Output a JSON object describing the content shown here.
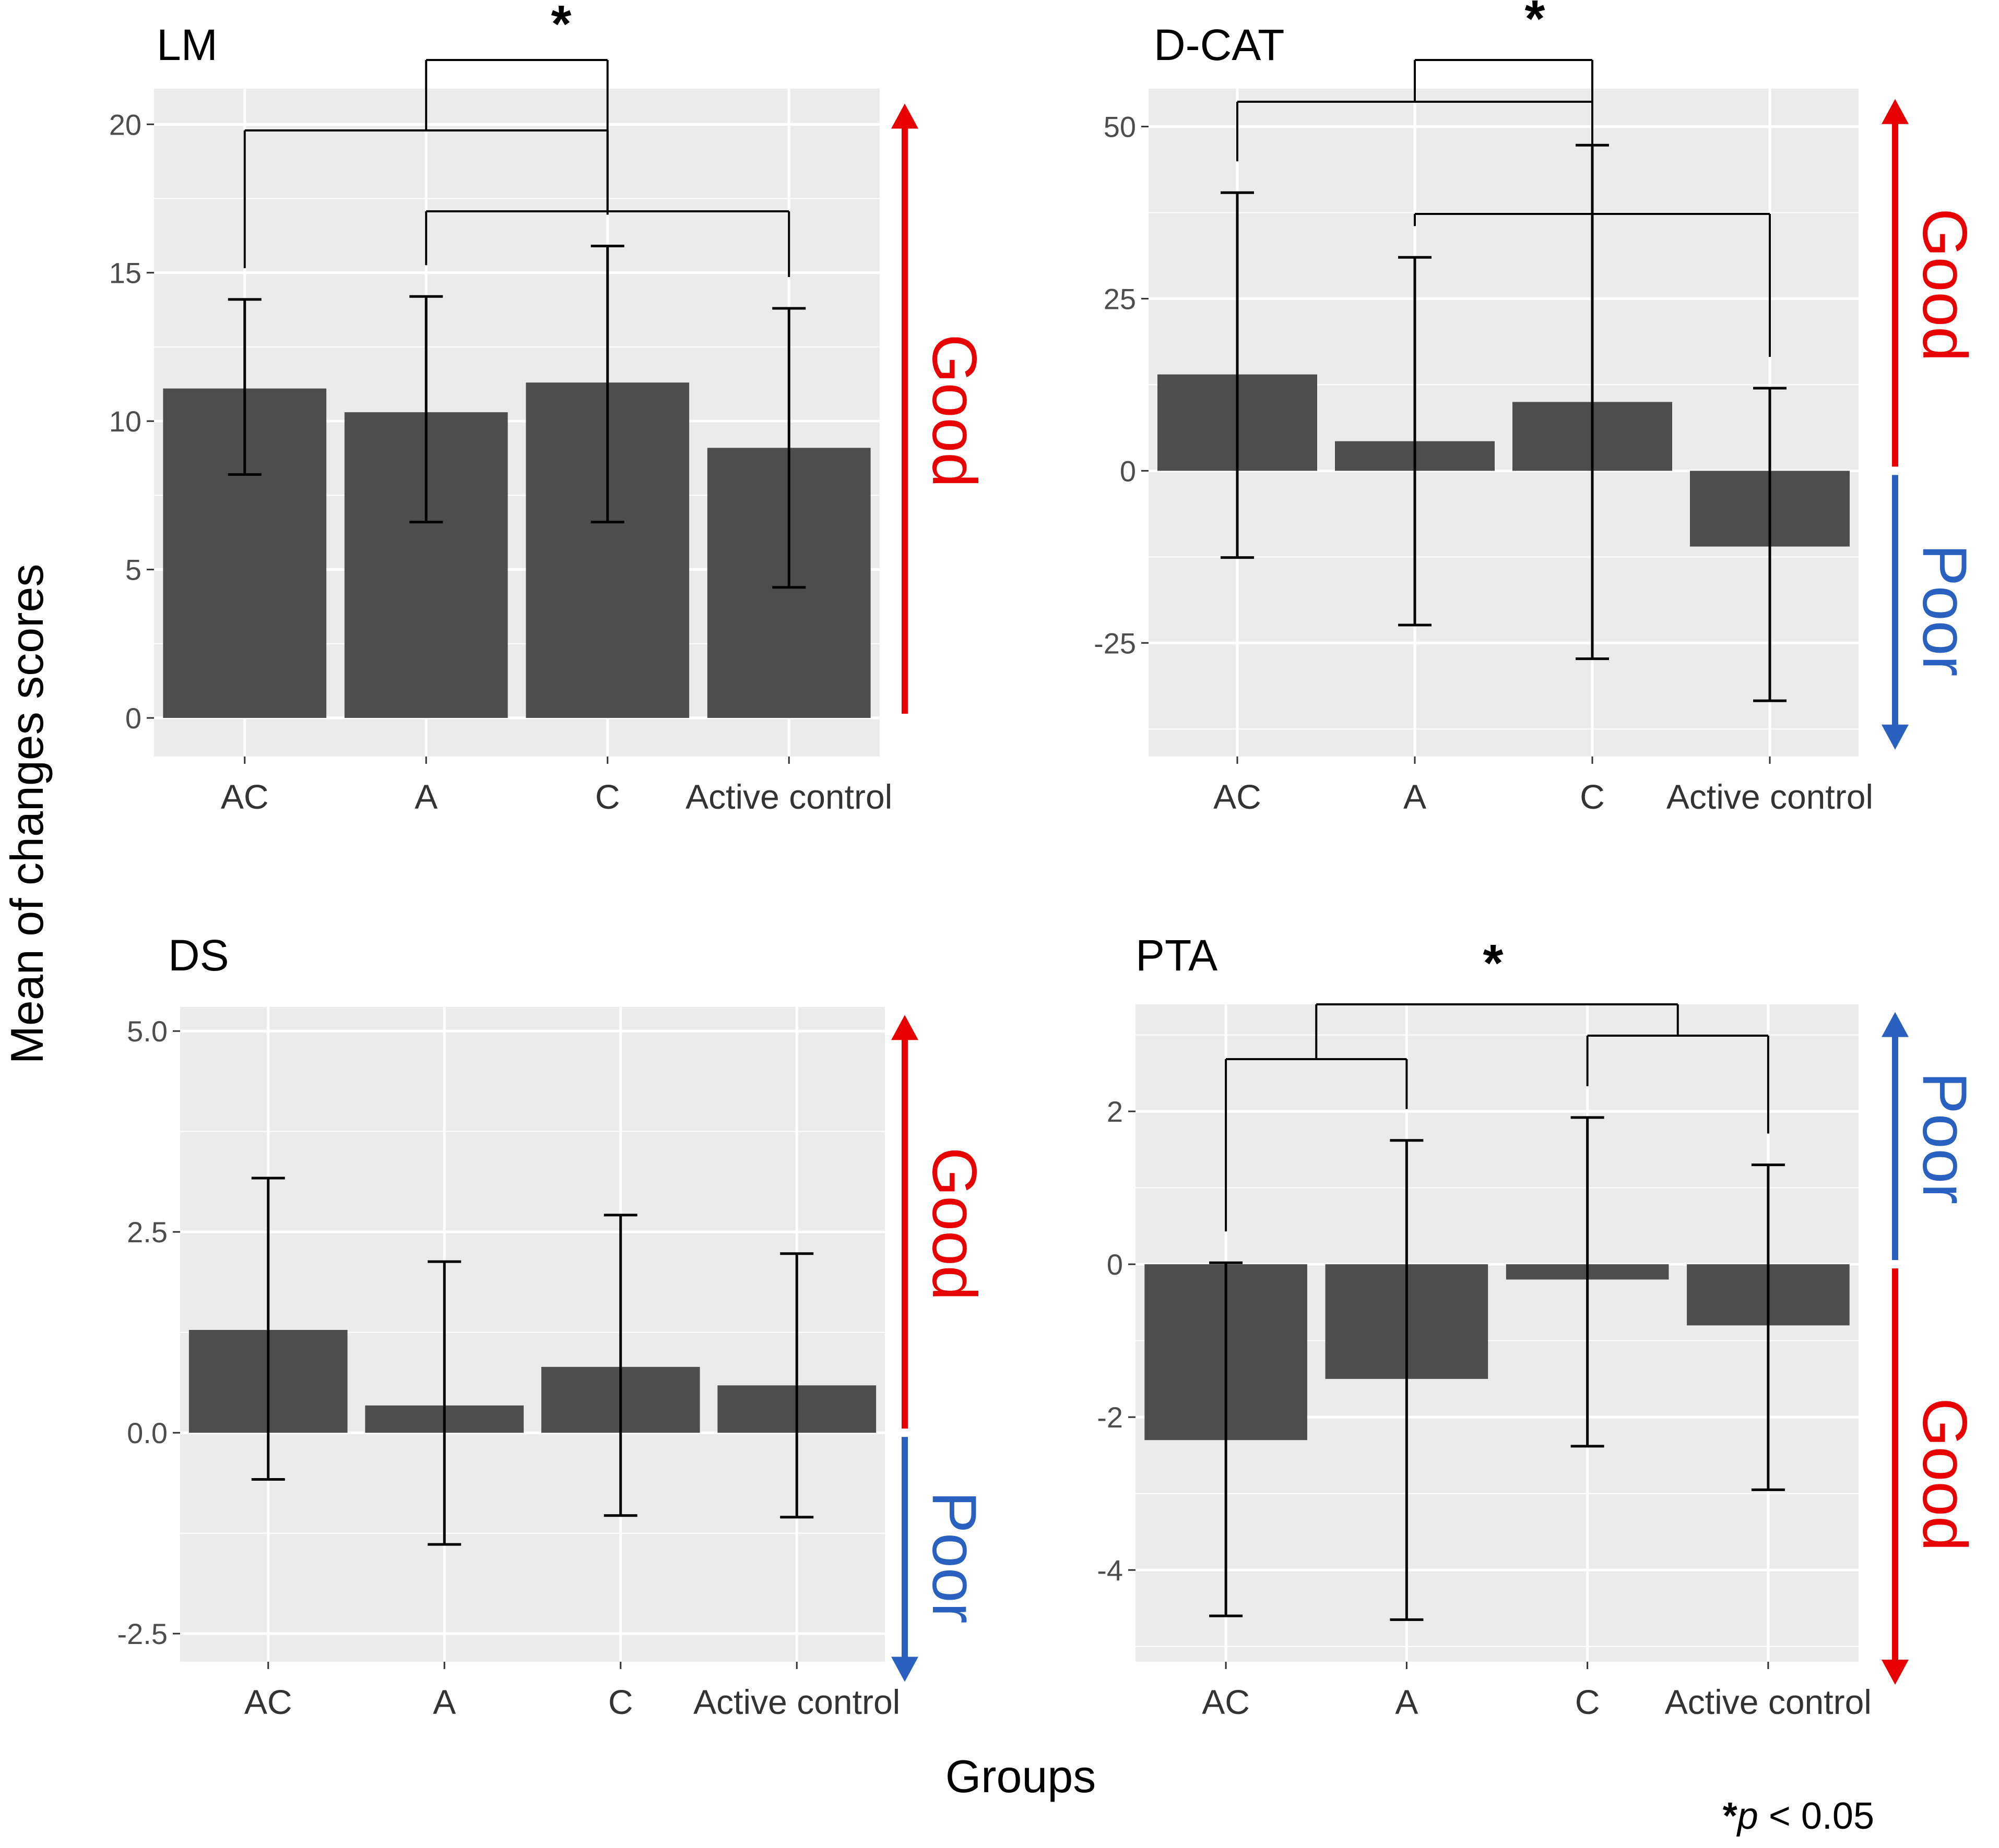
{
  "figure": {
    "ylabel": "Mean of changes scores",
    "xlabel": "Groups",
    "footnote_star": "*",
    "footnote_p": "p",
    "footnote_rest": " < 0.05",
    "good_label": "Good",
    "poor_label": "Poor",
    "colors": {
      "panel_bg": "#ebebeb",
      "grid": "#ffffff",
      "bar": "#4d4d4d",
      "good": "#e80000",
      "poor": "#2a60c0"
    }
  },
  "chart_data": [
    {
      "type": "bar",
      "title": "LM",
      "categories": [
        "AC",
        "A",
        "C",
        "Active control"
      ],
      "values": [
        11.1,
        10.3,
        11.3,
        9.1
      ],
      "error_low": [
        8.2,
        6.6,
        6.6,
        4.4
      ],
      "error_high": [
        14.1,
        14.2,
        15.9,
        13.8
      ],
      "ylim": [
        -1.3,
        21.2
      ],
      "yticks": [
        0,
        5,
        10,
        15,
        20
      ],
      "ytick_labels": [
        "0",
        "5",
        "10",
        "15",
        "20"
      ],
      "significance": "*",
      "arrows": [
        {
          "label": "Good",
          "direction": "up",
          "from": 0,
          "to": 20.7
        }
      ]
    },
    {
      "type": "bar",
      "title": "D-CAT",
      "categories": [
        "AC",
        "A",
        "C",
        "Active control"
      ],
      "values": [
        14.0,
        4.3,
        10.0,
        -11.0
      ],
      "error_low": [
        -12.6,
        -22.4,
        -27.3,
        -33.4
      ],
      "error_high": [
        40.4,
        31.0,
        47.3,
        12.0
      ],
      "ylim": [
        -41.5,
        55.5
      ],
      "yticks": [
        -25,
        0,
        25,
        50
      ],
      "ytick_labels": [
        "-25",
        "0",
        "25",
        "50"
      ],
      "significance": "*",
      "arrows": [
        {
          "label": "Good",
          "direction": "up",
          "from": 0,
          "to": 54
        },
        {
          "label": "Poor",
          "direction": "down",
          "from": 0,
          "to": -40.5
        }
      ]
    },
    {
      "type": "bar",
      "title": "DS",
      "categories": [
        "AC",
        "A",
        "C",
        "Active control"
      ],
      "values": [
        1.28,
        0.34,
        0.82,
        0.59
      ],
      "error_low": [
        -0.58,
        -1.39,
        -1.03,
        -1.05
      ],
      "error_high": [
        3.17,
        2.13,
        2.71,
        2.23
      ],
      "ylim": [
        -2.85,
        5.3
      ],
      "yticks": [
        -2.5,
        0,
        2.5,
        5
      ],
      "ytick_labels": [
        "-2.5",
        "0.0",
        "2.5",
        "5.0"
      ],
      "significance": "",
      "arrows": [
        {
          "label": "Good",
          "direction": "up",
          "from": 0,
          "to": 5.2
        },
        {
          "label": "Poor",
          "direction": "down",
          "from": 0,
          "to": -3.1
        }
      ]
    },
    {
      "type": "bar",
      "title": "PTA",
      "categories": [
        "AC",
        "A",
        "C",
        "Active control"
      ],
      "values": [
        -2.3,
        -1.5,
        -0.2,
        -0.8
      ],
      "error_low": [
        -4.6,
        -4.65,
        -2.38,
        -2.95
      ],
      "error_high": [
        0.02,
        1.62,
        1.92,
        1.3
      ],
      "ylim": [
        -5.2,
        3.4
      ],
      "yticks": [
        -4,
        -2,
        0,
        2
      ],
      "ytick_labels": [
        "-4",
        "-2",
        "0",
        "2"
      ],
      "significance": "*",
      "arrows": [
        {
          "label": "Poor",
          "direction": "up",
          "from": 0,
          "to": 3.3
        },
        {
          "label": "Good",
          "direction": "down",
          "from": 0,
          "to": -5.5
        }
      ]
    }
  ]
}
